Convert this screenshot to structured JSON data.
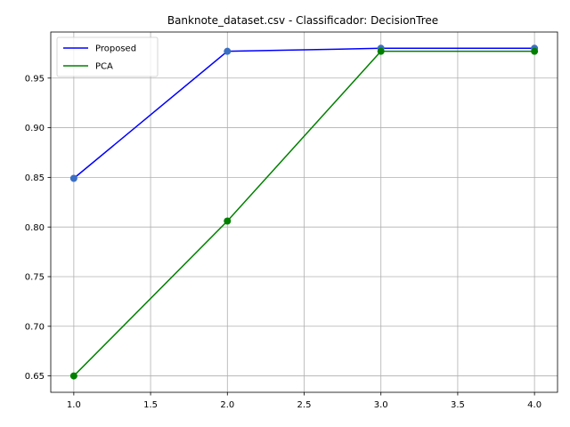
{
  "chart_data": {
    "type": "line",
    "title": "Banknote_dataset.csv - Classificador: DecisionTree",
    "xlabel": "",
    "ylabel": "",
    "x": [
      1.0,
      2.0,
      3.0,
      4.0
    ],
    "xlim": [
      0.85,
      4.15
    ],
    "ylim": [
      0.6335,
      0.9964
    ],
    "xticks": [
      1.0,
      1.5,
      2.0,
      2.5,
      3.0,
      3.5,
      4.0
    ],
    "xtick_labels": [
      "1.0",
      "1.5",
      "2.0",
      "2.5",
      "3.0",
      "3.5",
      "4.0"
    ],
    "yticks": [
      0.65,
      0.7,
      0.75,
      0.8,
      0.85,
      0.9,
      0.95
    ],
    "ytick_labels": [
      "0.65",
      "0.70",
      "0.75",
      "0.80",
      "0.85",
      "0.90",
      "0.95"
    ],
    "grid": true,
    "legend_position": "top-left",
    "series": [
      {
        "name": "Proposed",
        "values": [
          0.849,
          0.977,
          0.98,
          0.98
        ],
        "color": "#0000ff",
        "marker_color": "#3b6fc4"
      },
      {
        "name": "PCA",
        "values": [
          0.65,
          0.806,
          0.977,
          0.977
        ],
        "color": "#008000",
        "marker_color": "#007f00"
      }
    ]
  }
}
